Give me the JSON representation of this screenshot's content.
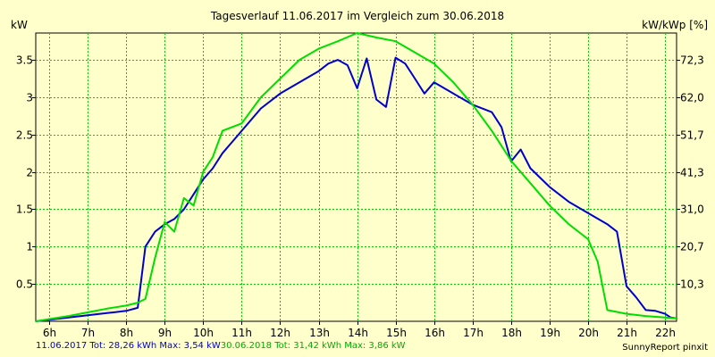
{
  "chart_data": {
    "type": "line",
    "title": "Tagesverlauf 11.06.2017 im Vergleich zum 30.06.2018",
    "ylabel_left": "kW",
    "ylabel_right": "kW/kWp [%]",
    "xlim": [
      5.65,
      22.3
    ],
    "ylim": [
      0,
      3.86
    ],
    "x_ticks": [
      6,
      7,
      8,
      9,
      10,
      11,
      12,
      13,
      14,
      15,
      16,
      17,
      18,
      19,
      20,
      21,
      22
    ],
    "x_tick_labels": [
      "6h",
      "7h",
      "8h",
      "9h",
      "10h",
      "11h",
      "12h",
      "13h",
      "14h",
      "15h",
      "16h",
      "17h",
      "18h",
      "19h",
      "20h",
      "21h",
      "22h"
    ],
    "y_ticks": [
      0.5,
      1,
      1.5,
      2,
      2.5,
      3,
      3.5
    ],
    "y_tick_labels": [
      "0.5",
      "1",
      "1.5",
      "2",
      "2.5",
      "3",
      "3.5"
    ],
    "y2_ticks": [
      0.5,
      1.0,
      1.5,
      2.0,
      2.5,
      3.0,
      3.5
    ],
    "y2_tick_labels": [
      "10,3",
      "20,7",
      "31,0",
      "41,3",
      "51,7",
      "62,0",
      "72,3"
    ],
    "grid": true,
    "series": [
      {
        "color": "#0000cc",
        "points": [
          [
            5.65,
            0
          ],
          [
            6,
            0.02
          ],
          [
            6.5,
            0.05
          ],
          [
            7,
            0.08
          ],
          [
            7.5,
            0.11
          ],
          [
            8,
            0.14
          ],
          [
            8.3,
            0.18
          ],
          [
            8.5,
            1.0
          ],
          [
            8.75,
            1.2
          ],
          [
            9,
            1.3
          ],
          [
            9.25,
            1.37
          ],
          [
            9.5,
            1.5
          ],
          [
            9.75,
            1.7
          ],
          [
            10,
            1.9
          ],
          [
            10.25,
            2.05
          ],
          [
            10.5,
            2.25
          ],
          [
            11,
            2.55
          ],
          [
            11.5,
            2.85
          ],
          [
            12,
            3.05
          ],
          [
            12.5,
            3.2
          ],
          [
            13,
            3.35
          ],
          [
            13.25,
            3.45
          ],
          [
            13.5,
            3.5
          ],
          [
            13.75,
            3.43
          ],
          [
            14,
            3.12
          ],
          [
            14.25,
            3.52
          ],
          [
            14.5,
            2.97
          ],
          [
            14.75,
            2.87
          ],
          [
            15,
            3.53
          ],
          [
            15.25,
            3.45
          ],
          [
            15.5,
            3.25
          ],
          [
            15.75,
            3.05
          ],
          [
            16,
            3.2
          ],
          [
            16.5,
            3.05
          ],
          [
            17,
            2.9
          ],
          [
            17.5,
            2.8
          ],
          [
            17.75,
            2.6
          ],
          [
            18,
            2.14
          ],
          [
            18.25,
            2.3
          ],
          [
            18.5,
            2.05
          ],
          [
            19,
            1.8
          ],
          [
            19.5,
            1.6
          ],
          [
            20,
            1.45
          ],
          [
            20.5,
            1.3
          ],
          [
            20.75,
            1.2
          ],
          [
            21,
            0.47
          ],
          [
            21.25,
            0.32
          ],
          [
            21.5,
            0.15
          ],
          [
            21.75,
            0.14
          ],
          [
            22,
            0.1
          ],
          [
            22.15,
            0.05
          ],
          [
            22.3,
            0.04
          ]
        ]
      },
      {
        "color": "#00dd00",
        "points": [
          [
            5.65,
            0
          ],
          [
            6,
            0.03
          ],
          [
            6.5,
            0.07
          ],
          [
            7,
            0.12
          ],
          [
            7.5,
            0.17
          ],
          [
            8,
            0.21
          ],
          [
            8.3,
            0.25
          ],
          [
            8.5,
            0.3
          ],
          [
            8.75,
            0.85
          ],
          [
            9,
            1.33
          ],
          [
            9.25,
            1.2
          ],
          [
            9.5,
            1.65
          ],
          [
            9.75,
            1.55
          ],
          [
            10,
            2.0
          ],
          [
            10.25,
            2.2
          ],
          [
            10.5,
            2.55
          ],
          [
            11,
            2.65
          ],
          [
            11.5,
            3.0
          ],
          [
            12,
            3.25
          ],
          [
            12.5,
            3.5
          ],
          [
            13,
            3.65
          ],
          [
            13.5,
            3.75
          ],
          [
            14,
            3.86
          ],
          [
            14.5,
            3.8
          ],
          [
            15,
            3.75
          ],
          [
            15.5,
            3.6
          ],
          [
            16,
            3.45
          ],
          [
            16.5,
            3.2
          ],
          [
            17,
            2.9
          ],
          [
            17.5,
            2.55
          ],
          [
            18,
            2.15
          ],
          [
            18.5,
            1.85
          ],
          [
            19,
            1.55
          ],
          [
            19.5,
            1.3
          ],
          [
            20,
            1.1
          ],
          [
            20.25,
            0.8
          ],
          [
            20.5,
            0.15
          ],
          [
            21,
            0.1
          ],
          [
            21.5,
            0.07
          ],
          [
            22,
            0.05
          ],
          [
            22.3,
            0.04
          ]
        ]
      }
    ]
  },
  "footer": {
    "series1_text": "11.06.2017 Tot: 28,26 kWh Max: 3,54 kW",
    "series2_text": "30.06.2018 Tot: 31,42 kWh Max: 3,86 kW",
    "credit": "SunnyReport pinxit"
  }
}
